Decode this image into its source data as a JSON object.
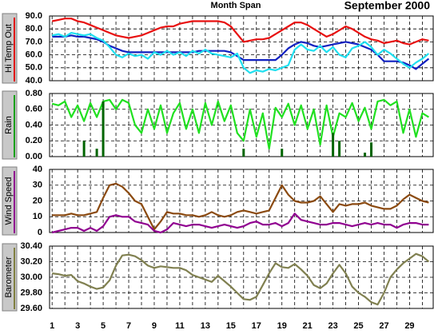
{
  "chart_data": [
    {
      "type": "line",
      "title": "Month Span",
      "subtitle": "September 2000",
      "ylabel": "Hi Temp Out",
      "label_color": "#e00000",
      "ylim": [
        40,
        90
      ],
      "yticks": [
        {
          "value": 40,
          "label": "40.0"
        },
        {
          "value": 50,
          "label": "50.0"
        },
        {
          "value": 60,
          "label": "60.0"
        },
        {
          "value": 70,
          "label": "70.0"
        },
        {
          "value": 80,
          "label": "80.0"
        },
        {
          "value": 90,
          "label": "90.0"
        }
      ],
      "x": [
        1,
        1.5,
        2,
        2.5,
        3,
        3.5,
        4,
        4.5,
        5,
        5.5,
        6,
        6.5,
        7,
        7.5,
        8,
        8.5,
        9,
        9.5,
        10,
        10.5,
        11,
        11.5,
        12,
        12.5,
        13,
        13.5,
        14,
        14.5,
        15,
        15.5,
        16,
        16.5,
        17,
        17.5,
        18,
        18.5,
        19,
        19.5,
        20,
        20.5,
        21,
        21.5,
        22,
        22.5,
        23,
        23.5,
        24,
        24.5,
        25,
        25.5,
        26,
        26.5,
        27,
        27.5,
        28,
        28.5,
        29,
        29.5,
        30,
        30.5
      ],
      "series": [
        {
          "color": "#e81010",
          "values": [
            86,
            87,
            88,
            88,
            86,
            85,
            83,
            81,
            79,
            77,
            75,
            74,
            73,
            74,
            75,
            77,
            79,
            81,
            82,
            82,
            84,
            85,
            86,
            86,
            86,
            86,
            86,
            85,
            82,
            76,
            70,
            71,
            72,
            72,
            73,
            76,
            79,
            82,
            85,
            85,
            83,
            80,
            77,
            74,
            76,
            79,
            82,
            80,
            77,
            74,
            72,
            71,
            69,
            70,
            71,
            69,
            68,
            70,
            72,
            71
          ]
        },
        {
          "color": "#1020c0",
          "values": [
            74,
            74,
            74,
            75,
            74,
            74,
            73,
            72,
            70,
            67,
            65,
            63,
            62,
            62,
            62,
            62,
            62,
            62,
            62,
            62,
            62,
            62,
            62,
            63,
            63,
            63,
            63,
            63,
            62,
            59,
            56,
            56,
            56,
            56,
            56,
            56,
            60,
            65,
            68,
            70,
            69,
            67,
            66,
            67,
            68,
            69,
            70,
            69,
            68,
            66,
            64,
            60,
            55,
            55,
            55,
            54,
            52,
            49,
            53,
            57
          ]
        },
        {
          "color": "#20e0f0",
          "values": [
            75,
            76,
            74,
            77,
            76,
            75,
            76,
            73,
            71,
            66,
            60,
            58,
            61,
            59,
            60,
            57,
            62,
            60,
            63,
            60,
            62,
            59,
            63,
            61,
            64,
            61,
            60,
            59,
            58,
            61,
            50,
            46,
            48,
            47,
            49,
            48,
            50,
            52,
            64,
            68,
            64,
            63,
            67,
            62,
            66,
            60,
            58,
            65,
            67,
            70,
            66,
            60,
            64,
            61,
            57,
            53,
            50,
            54,
            57,
            61
          ]
        }
      ]
    },
    {
      "type": "line",
      "ylabel": "Rain",
      "label_color": "#10a010",
      "ylim": [
        0,
        0.8
      ],
      "yticks": [
        {
          "value": 0,
          "label": "0.00"
        },
        {
          "value": 0.2,
          "label": "0.20"
        },
        {
          "value": 0.4,
          "label": "0.40"
        },
        {
          "value": 0.6,
          "label": "0.60"
        },
        {
          "value": 0.8,
          "label": "0.80"
        }
      ],
      "x": [
        1,
        1.5,
        2,
        2.5,
        3,
        3.5,
        4,
        4.5,
        5,
        5.5,
        6,
        6.5,
        7,
        7.5,
        8,
        8.5,
        9,
        9.5,
        10,
        10.5,
        11,
        11.5,
        12,
        12.5,
        13,
        13.5,
        14,
        14.5,
        15,
        15.5,
        16,
        16.5,
        17,
        17.5,
        18,
        18.5,
        19,
        19.5,
        20,
        20.5,
        21,
        21.5,
        22,
        22.5,
        23,
        23.5,
        24,
        24.5,
        25,
        25.5,
        26,
        26.5,
        27,
        27.5,
        28,
        28.5,
        29,
        29.5,
        30,
        30.5
      ],
      "series": [
        {
          "color": "#20e020",
          "values": [
            0.67,
            0.65,
            0.7,
            0.5,
            0.65,
            0.45,
            0.68,
            0.5,
            0.7,
            0.72,
            0.6,
            0.72,
            0.68,
            0.4,
            0.3,
            0.6,
            0.35,
            0.65,
            0.3,
            0.55,
            0.68,
            0.35,
            0.6,
            0.3,
            0.68,
            0.4,
            0.7,
            0.45,
            0.65,
            0.3,
            0.2,
            0.6,
            0.25,
            0.55,
            0.1,
            0.62,
            0.5,
            0.67,
            0.4,
            0.65,
            0.35,
            0.6,
            0.15,
            0.65,
            0.25,
            0.55,
            0.5,
            0.68,
            0.45,
            0.62,
            0.35,
            0.7,
            0.72,
            0.65,
            0.7,
            0.3,
            0.6,
            0.25,
            0.55,
            0.5
          ]
        },
        {
          "type": "bar",
          "color": "#006400",
          "values": [
            0,
            0,
            0,
            0,
            0,
            0.2,
            0,
            0.1,
            0.7,
            0,
            0,
            0,
            0,
            0,
            0,
            0,
            0,
            0,
            0,
            0,
            0,
            0,
            0,
            0,
            0,
            0,
            0,
            0,
            0,
            0,
            0.1,
            0,
            0,
            0,
            0,
            0,
            0.1,
            0,
            0,
            0,
            0,
            0,
            0,
            0,
            0.3,
            0.2,
            0,
            0,
            0,
            0.05,
            0.18,
            0,
            0,
            0,
            0,
            0,
            0,
            0,
            0,
            0
          ]
        }
      ]
    },
    {
      "type": "line",
      "ylabel": "Wind Speed",
      "label_color": "#900090",
      "ylim": [
        0,
        40
      ],
      "yticks": [
        0,
        10,
        20,
        30,
        40
      ],
      "x": [
        1,
        1.5,
        2,
        2.5,
        3,
        3.5,
        4,
        4.5,
        5,
        5.5,
        6,
        6.5,
        7,
        7.5,
        8,
        8.5,
        9,
        9.5,
        10,
        10.5,
        11,
        11.5,
        12,
        12.5,
        13,
        13.5,
        14,
        14.5,
        15,
        15.5,
        16,
        16.5,
        17,
        17.5,
        18,
        18.5,
        19,
        19.5,
        20,
        20.5,
        21,
        21.5,
        22,
        22.5,
        23,
        23.5,
        24,
        24.5,
        25,
        25.5,
        26,
        26.5,
        27,
        27.5,
        28,
        28.5,
        29,
        29.5,
        30,
        30.5
      ],
      "series": [
        {
          "color": "#8b4a10",
          "values": [
            11,
            11,
            11,
            12,
            11,
            11,
            12,
            13,
            22,
            30,
            31,
            29,
            25,
            20,
            18,
            10,
            2,
            7,
            13,
            12,
            12,
            11,
            11,
            10,
            11,
            13,
            11,
            10,
            11,
            13,
            14,
            13,
            12,
            13,
            14,
            22,
            30,
            24,
            20,
            19,
            19,
            20,
            23,
            18,
            13,
            18,
            17,
            18,
            18,
            19,
            17,
            16,
            15,
            15,
            17,
            21,
            24,
            22,
            20,
            19
          ]
        },
        {
          "color": "#900090",
          "values": [
            0,
            1,
            2,
            3,
            3,
            1,
            3,
            1,
            4,
            10,
            11,
            10,
            10,
            7,
            6,
            5,
            1,
            0,
            2,
            6,
            5,
            4,
            5,
            5,
            4,
            3,
            4,
            5,
            4,
            3,
            4,
            6,
            7,
            5,
            5,
            6,
            4,
            6,
            12,
            8,
            7,
            6,
            5,
            5,
            6,
            6,
            5,
            4,
            5,
            6,
            5,
            6,
            5,
            5,
            3,
            5,
            6,
            6,
            5,
            5
          ]
        }
      ]
    },
    {
      "type": "line",
      "ylabel": "Barometer",
      "label_color": "#808040",
      "ylim": [
        29.6,
        30.4
      ],
      "yticks": [
        {
          "value": 29.6,
          "label": "29.60"
        },
        {
          "value": 29.8,
          "label": "29.80"
        },
        {
          "value": 30,
          "label": "30.00"
        },
        {
          "value": 30.2,
          "label": "30.20"
        },
        {
          "value": 30.4,
          "label": "30.40"
        }
      ],
      "xlim": [
        0.8,
        30.85
      ],
      "xticks": [
        1,
        3,
        5,
        7,
        9,
        11,
        13,
        15,
        17,
        19,
        21,
        23,
        25,
        27,
        29
      ],
      "minor_xticks": [
        2,
        4,
        6,
        8,
        10,
        12,
        14,
        16,
        18,
        20,
        22,
        24,
        26,
        28,
        30
      ],
      "x": [
        1,
        1.5,
        2,
        2.5,
        3,
        3.5,
        4,
        4.5,
        5,
        5.5,
        6,
        6.5,
        7,
        7.5,
        8,
        8.5,
        9,
        9.5,
        10,
        10.5,
        11,
        11.5,
        12,
        12.5,
        13,
        13.5,
        14,
        14.5,
        15,
        15.5,
        16,
        16.5,
        17,
        17.5,
        18,
        18.5,
        19,
        19.5,
        20,
        20.5,
        21,
        21.5,
        22,
        22.5,
        23,
        23.5,
        24,
        24.5,
        25,
        25.5,
        26,
        26.5,
        27,
        27.5,
        28,
        28.5,
        29,
        29.5,
        30,
        30.5
      ],
      "series": [
        {
          "color": "#808050",
          "values": [
            30.05,
            30.04,
            30.02,
            30.03,
            29.95,
            29.92,
            29.88,
            29.85,
            29.87,
            29.96,
            30.15,
            30.28,
            30.29,
            30.27,
            30.22,
            30.15,
            30.12,
            30.14,
            30.13,
            30.12,
            30.12,
            30.09,
            30.03,
            30.0,
            29.97,
            29.94,
            30.02,
            29.95,
            29.88,
            29.8,
            29.72,
            29.71,
            29.75,
            29.9,
            30.05,
            30.18,
            30.13,
            30.12,
            30.17,
            30.1,
            30.02,
            29.9,
            29.86,
            29.92,
            30.05,
            30.16,
            30.05,
            29.88,
            29.8,
            29.75,
            29.68,
            29.65,
            29.8,
            30.0,
            30.1,
            30.18,
            30.24,
            30.3,
            30.27,
            30.2
          ]
        }
      ]
    }
  ]
}
